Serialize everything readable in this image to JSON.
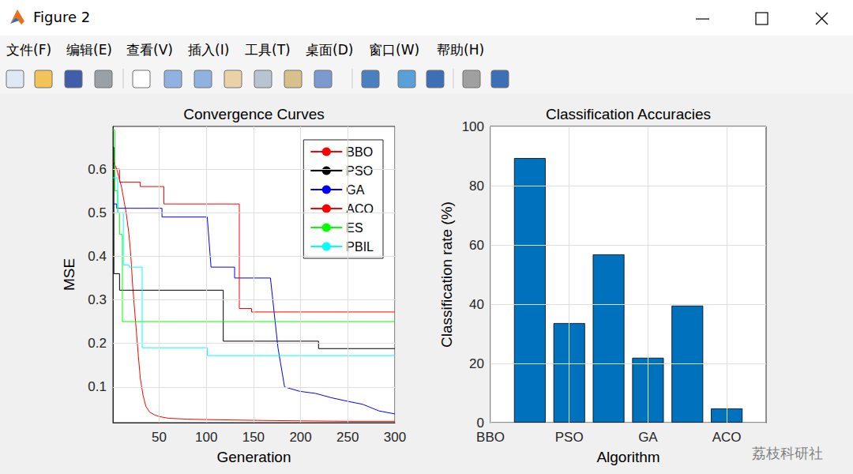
{
  "window": {
    "title": "Figure 2",
    "menu": [
      "文件(F)",
      "编辑(E)",
      "查看(V)",
      "插入(I)",
      "工具(T)",
      "桌面(D)",
      "窗口(W)",
      "帮助(H)"
    ]
  },
  "watermark": "荔枝科研社",
  "chart_data": [
    {
      "type": "line",
      "title": "Convergence Curves",
      "x_label": "Generation",
      "y_label": "MSE",
      "xlim": [
        1,
        300
      ],
      "xticks": [
        50,
        100,
        150,
        200,
        250,
        300
      ],
      "ylim": [
        0.018,
        0.698
      ],
      "yticks": [
        0.1,
        0.2,
        0.3,
        0.4,
        0.5,
        0.6
      ],
      "grid": true,
      "legend": "upper right",
      "series": [
        {
          "name": "BBO",
          "color": "#ff0000",
          "x": [
            1,
            5,
            10,
            15,
            18,
            20,
            22,
            25,
            28,
            30,
            33,
            36,
            40,
            45,
            50,
            60,
            80,
            100,
            130,
            160,
            200,
            250,
            300
          ],
          "values": [
            0.62,
            0.6,
            0.56,
            0.5,
            0.45,
            0.4,
            0.33,
            0.25,
            0.17,
            0.12,
            0.08,
            0.055,
            0.042,
            0.036,
            0.032,
            0.028,
            0.026,
            0.025,
            0.024,
            0.023,
            0.022,
            0.021,
            0.021
          ]
        },
        {
          "name": "PSO",
          "color": "#000000",
          "x": [
            1,
            2,
            2,
            8,
            8,
            118,
            118,
            219,
            219,
            300
          ],
          "values": [
            0.65,
            0.65,
            0.36,
            0.36,
            0.322,
            0.322,
            0.205,
            0.205,
            0.188,
            0.188
          ]
        },
        {
          "name": "GA",
          "color": "#0000ff",
          "x": [
            1,
            5,
            5,
            53,
            53,
            101,
            105,
            130,
            130,
            168,
            172,
            176,
            183,
            199,
            216,
            233,
            250,
            266,
            283,
            300
          ],
          "values": [
            0.52,
            0.52,
            0.51,
            0.51,
            0.49,
            0.49,
            0.375,
            0.375,
            0.35,
            0.35,
            0.27,
            0.19,
            0.1,
            0.09,
            0.085,
            0.075,
            0.067,
            0.06,
            0.045,
            0.038
          ]
        },
        {
          "name": "ACO",
          "color": "#ff0000",
          "x": [
            1,
            8,
            8,
            30,
            30,
            55,
            55,
            135,
            135,
            148,
            148,
            300
          ],
          "values": [
            0.6,
            0.6,
            0.57,
            0.57,
            0.56,
            0.56,
            0.52,
            0.52,
            0.28,
            0.28,
            0.272,
            0.272
          ]
        },
        {
          "name": "ES",
          "color": "#00ff00",
          "x": [
            1,
            3,
            3,
            6,
            6,
            8,
            8,
            11,
            11,
            300
          ],
          "values": [
            0.69,
            0.69,
            0.55,
            0.55,
            0.5,
            0.5,
            0.45,
            0.45,
            0.25,
            0.25
          ]
        },
        {
          "name": "PBIL",
          "color": "#00ffff",
          "x": [
            1,
            6,
            6,
            12,
            12,
            18,
            18,
            32,
            32,
            101,
            101,
            300
          ],
          "values": [
            0.58,
            0.58,
            0.5,
            0.5,
            0.38,
            0.38,
            0.375,
            0.375,
            0.19,
            0.19,
            0.172,
            0.172
          ]
        }
      ]
    },
    {
      "type": "bar",
      "title": "Classification Accuracies",
      "x_label": "Algorithm",
      "y_label": "Classification rate (%)",
      "x": [
        1,
        2,
        3,
        4,
        5,
        6
      ],
      "values": [
        89.3,
        33.6,
        56.8,
        21.9,
        39.5,
        4.8
      ],
      "color": "#0072bd",
      "xlim": [
        0,
        7
      ],
      "xticks": [
        {
          "value": 0,
          "label": "BBO"
        },
        {
          "value": 2,
          "label": "PSO"
        },
        {
          "value": 4,
          "label": "GA"
        },
        {
          "value": 6,
          "label": "ACO"
        }
      ],
      "ylim": [
        0,
        100
      ],
      "yticks": [
        0,
        20,
        40,
        60,
        80,
        100
      ],
      "grid": true
    }
  ]
}
